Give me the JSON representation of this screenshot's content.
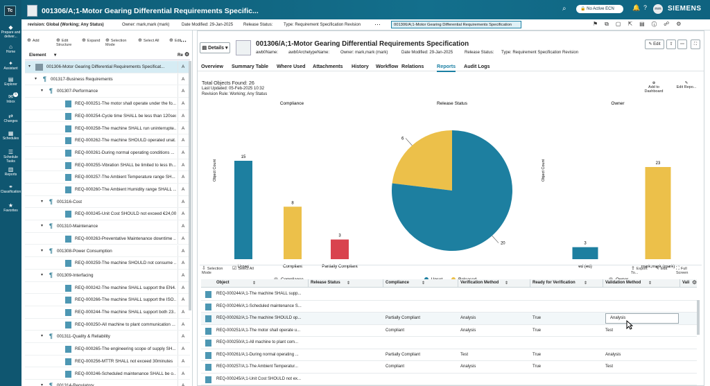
{
  "app": {
    "logo": "Tc",
    "title": "001306/A;1-Motor Gearing Differential Requirements Specific...",
    "ecn": "No Active ECN",
    "brand": "SIEMENS",
    "avatar": "mm"
  },
  "crumbs": {
    "revision": "revision: Global (Working; Any Status)",
    "owner": "Owner: mark,mark (mark)",
    "modified": "Date Modified: 29-Jan-2025",
    "release": "Release Status:",
    "type": "Type: Requirement Specification Revision",
    "active": "001306/A;1-Motor Gearing Differential Requirements Specification"
  },
  "nav": [
    {
      "label": "Prepare and deliver...",
      "icon": "◆"
    },
    {
      "label": "Home",
      "icon": "⌂"
    },
    {
      "label": "Assistant",
      "icon": "✦"
    },
    {
      "label": "Explorer",
      "icon": "▤"
    },
    {
      "label": "Inbox",
      "icon": "✉",
      "badge": "5"
    },
    {
      "label": "Changes",
      "icon": "⇄"
    },
    {
      "label": "Schedules",
      "icon": "▦"
    },
    {
      "label": "Schedule Tasks",
      "icon": "☰"
    },
    {
      "label": "Reports",
      "icon": "▥"
    },
    {
      "label": "Classification",
      "icon": "⚭"
    },
    {
      "label": "Favorites",
      "icon": "★"
    }
  ],
  "tree": {
    "tools": [
      "Add",
      "Edit Structure",
      "Expand",
      "Selection Mode",
      "Select All",
      "Edit"
    ],
    "col_element": "Element",
    "col_rev": "Re",
    "rows": [
      {
        "d": 0,
        "k": "spec",
        "t": "001306-Motor Gearing Differential Requirements Specificat...",
        "a": "A"
      },
      {
        "d": 1,
        "k": "p",
        "t": "001317-Business Requirements",
        "a": "A"
      },
      {
        "d": 2,
        "k": "p",
        "t": "001307-Performance",
        "a": "A"
      },
      {
        "d": 3,
        "k": "r",
        "t": "REQ-000251-The motor shall operate under the fo...",
        "a": "A"
      },
      {
        "d": 3,
        "k": "r",
        "t": "REQ-000254-Cycle time SHALL be less than 120sec",
        "a": "A"
      },
      {
        "d": 3,
        "k": "r",
        "t": "REQ-000258-The machine SHALL run uninterrupte...",
        "a": "A"
      },
      {
        "d": 3,
        "k": "r",
        "t": "REQ-000262-The machine SHOULD operated unat...",
        "a": "A"
      },
      {
        "d": 3,
        "k": "r",
        "t": "REQ-000261-During normal operating conditions ...",
        "a": "A"
      },
      {
        "d": 3,
        "k": "r",
        "t": "REQ-000255-Vibration SHALL be limited to less th...",
        "a": "A"
      },
      {
        "d": 3,
        "k": "r",
        "t": "REQ-000257-The Ambient Temperature range SH...",
        "a": "A"
      },
      {
        "d": 3,
        "k": "r",
        "t": "REQ-000260-The Ambient Humidity range SHALL ...",
        "a": "A"
      },
      {
        "d": 2,
        "k": "p",
        "t": "001316-Cost",
        "a": "A"
      },
      {
        "d": 3,
        "k": "r",
        "t": "REQ-000245-Unit Cost SHOULD not exceed €24,000",
        "a": "A"
      },
      {
        "d": 2,
        "k": "p",
        "t": "001310-Maintenance",
        "a": "A"
      },
      {
        "d": 3,
        "k": "r",
        "t": "REQ-000263-Preventative Maintenance downtime ...",
        "a": "A"
      },
      {
        "d": 2,
        "k": "p",
        "t": "001308-Power Consumption",
        "a": "A"
      },
      {
        "d": 3,
        "k": "r",
        "t": "REQ-000259-The machine SHOULD not consume ...",
        "a": "A"
      },
      {
        "d": 2,
        "k": "p",
        "t": "001309-Interfacing",
        "a": "A"
      },
      {
        "d": 3,
        "k": "r",
        "t": "REQ-000242-The machine SHALL support the EN4...",
        "a": "A"
      },
      {
        "d": 3,
        "k": "r",
        "t": "REQ-000266-The machine SHALL support the ISO...",
        "a": "A"
      },
      {
        "d": 3,
        "k": "r",
        "t": "REQ-000244-The machine SHALL support both 23...",
        "a": "A"
      },
      {
        "d": 3,
        "k": "r",
        "t": "REQ-000250-All machine to plant communication ...",
        "a": "A"
      },
      {
        "d": 2,
        "k": "p",
        "t": "001311-Quality & Reliability",
        "a": "A"
      },
      {
        "d": 3,
        "k": "r",
        "t": "REQ-000265-The engineering scope of supply SH...",
        "a": "A"
      },
      {
        "d": 3,
        "k": "r",
        "t": "REQ-000256-MTTR SHALL not exceed 30minutes",
        "a": "A"
      },
      {
        "d": 3,
        "k": "r",
        "t": "REQ-000246-Scheduled maintenance SHALL be o...",
        "a": "A"
      },
      {
        "d": 2,
        "k": "p",
        "t": "001314-Regulatory",
        "a": "A"
      }
    ]
  },
  "details": {
    "label": "Details",
    "title": "001306/A;1-Motor Gearing Differential Requirements Specification",
    "meta": [
      "awb0Name:",
      "awb0ArchetypeName:",
      "Owner: mark,mark (mark)",
      "Date Modified: 29-Jan-2025",
      "Release Status:",
      "Type: Requirement Specification Revision"
    ],
    "edit": "Edit",
    "tabs": [
      "Overview",
      "Summary Table",
      "Where Used",
      "Attachments",
      "History",
      "Workflow",
      "Relations",
      "Reports",
      "Audit Logs"
    ],
    "active_tab": "Reports"
  },
  "report": {
    "total": "Total Objects Found: 26",
    "updated": "Last Updated: 05-Feb-2025 10:32",
    "rule": "Revision Rule: Working; Any Status",
    "add_dashboard": "Add to Dashboard",
    "edit_report": "Edit Repo..."
  },
  "chart_data": [
    {
      "type": "bar",
      "title": "Compliance",
      "ylabel": "Object Count",
      "categories": [
        "Unset",
        "Compliant",
        "Partially Compliant"
      ],
      "values": [
        15,
        8,
        3
      ],
      "colors": [
        "#1d7fa0",
        "#ecc04a",
        "#d9434e"
      ],
      "legend": [
        "Compliance"
      ]
    },
    {
      "type": "pie",
      "title": "Release Status",
      "categories": [
        "Unset",
        "Released"
      ],
      "values": [
        20,
        6
      ],
      "colors": [
        "#1d7fa0",
        "#ecc04a"
      ],
      "legend": [
        "Unset",
        "Released"
      ]
    },
    {
      "type": "bar",
      "title": "Owner",
      "ylabel": "Object Count",
      "categories": [
        "ed (ed)",
        "mark,mark (mark)"
      ],
      "values": [
        3,
        23
      ],
      "colors": [
        "#1d7fa0",
        "#ecc04a"
      ],
      "legend": [
        "Owner"
      ]
    }
  ],
  "grid": {
    "tools": [
      "Selection Mode",
      "Select All",
      "Export To...",
      "Edit",
      "Full Screen"
    ],
    "cols": [
      "Object",
      "Release Status",
      "Compliance",
      "Verification Method",
      "Ready for Verification",
      "Validation Method",
      "Vali"
    ],
    "rows": [
      [
        "REQ-000244/A;1-The machine SHALL supp...",
        "",
        "",
        "",
        "",
        ""
      ],
      [
        "REQ-000246/A;1-Scheduled maintenance S...",
        "",
        "",
        "",
        "",
        ""
      ],
      [
        "REQ-000262/A;1-The machine SHOULD op...",
        "",
        "Partially Compliant",
        "Analysis",
        "True",
        "Analysis"
      ],
      [
        "REQ-000251/A;1-The motor shall operate u...",
        "",
        "Compliant",
        "Analysis",
        "True",
        "Test"
      ],
      [
        "REQ-000250/A;1-All machine to plant com...",
        "",
        "",
        "",
        "",
        ""
      ],
      [
        "REQ-000261/A;1-During normal operating ...",
        "",
        "Partially Compliant",
        "Test",
        "True",
        "Analysis"
      ],
      [
        "REQ-000257/A;1-The Ambient Temperatur...",
        "",
        "Compliant",
        "Analysis",
        "True",
        "Test"
      ],
      [
        "REQ-000245/A;1-Unit Cost SHOULD not ex...",
        "",
        "",
        "",
        "",
        ""
      ]
    ]
  }
}
